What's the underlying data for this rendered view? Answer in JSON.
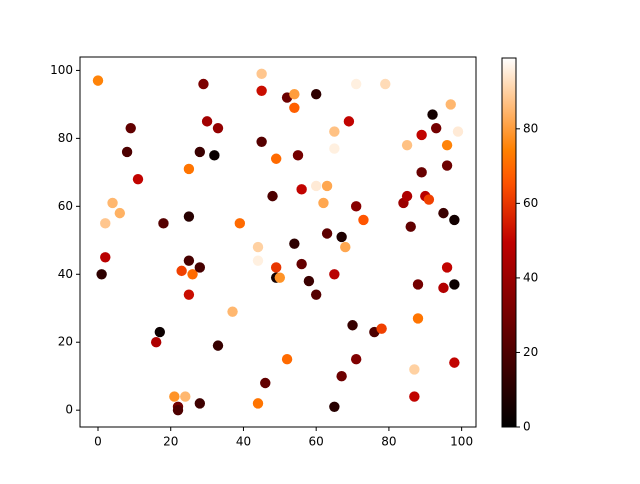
{
  "chart_data": {
    "type": "scatter",
    "x": [
      0,
      1,
      2,
      2,
      4,
      6,
      8,
      9,
      11,
      16,
      17,
      18,
      21,
      22,
      22,
      23,
      24,
      25,
      25,
      25,
      25,
      26,
      28,
      28,
      28,
      29,
      30,
      32,
      33,
      33,
      37,
      39,
      44,
      44,
      44,
      45,
      45,
      45,
      46,
      48,
      49,
      49,
      49,
      50,
      52,
      52,
      54,
      54,
      54,
      55,
      56,
      56,
      58,
      60,
      60,
      60,
      62,
      63,
      63,
      65,
      65,
      65,
      65,
      67,
      67,
      68,
      69,
      70,
      71,
      71,
      71,
      73,
      76,
      78,
      79,
      84,
      85,
      85,
      86,
      87,
      87,
      88,
      88,
      89,
      89,
      90,
      91,
      92,
      93,
      95,
      95,
      96,
      96,
      96,
      97,
      98,
      98,
      98,
      99
    ],
    "y": [
      97,
      40,
      55,
      45,
      61,
      58,
      76,
      83,
      68,
      20,
      23,
      55,
      4,
      1,
      0,
      41,
      4,
      71,
      57,
      44,
      34,
      40,
      76,
      42,
      2,
      96,
      85,
      75,
      83,
      19,
      29,
      55,
      48,
      44,
      2,
      99,
      94,
      79,
      8,
      63,
      74,
      42,
      39,
      39,
      92,
      15,
      93,
      89,
      49,
      75,
      65,
      43,
      38,
      93,
      66,
      34,
      61,
      66,
      52,
      82,
      77,
      40,
      1,
      51,
      10,
      48,
      85,
      25,
      96,
      60,
      15,
      56,
      23,
      24,
      96,
      61,
      63,
      78,
      54,
      12,
      4,
      37,
      27,
      81,
      70,
      63,
      62,
      87,
      83,
      58,
      36,
      78,
      72,
      42,
      90,
      56,
      37,
      14,
      82
    ],
    "c": [
      75,
      12,
      88,
      48,
      85,
      84,
      20,
      25,
      50,
      45,
      3,
      22,
      78,
      30,
      20,
      62,
      85,
      72,
      10,
      18,
      52,
      70,
      15,
      18,
      16,
      32,
      42,
      2,
      38,
      14,
      85,
      70,
      90,
      96,
      72,
      88,
      52,
      22,
      25,
      20,
      70,
      60,
      5,
      78,
      28,
      70,
      80,
      68,
      12,
      30,
      50,
      26,
      15,
      12,
      95,
      22,
      82,
      82,
      24,
      87,
      96,
      48,
      10,
      8,
      28,
      82,
      50,
      14,
      96,
      35,
      33,
      66,
      20,
      62,
      92,
      40,
      45,
      87,
      25,
      90,
      50,
      30,
      72,
      50,
      27,
      48,
      62,
      5,
      30,
      15,
      46,
      75,
      28,
      50,
      85,
      5,
      3,
      50,
      95
    ],
    "colormap": "gist_heat",
    "xlim": [
      -4.95,
      103.95
    ],
    "ylim": [
      -4.95,
      103.95
    ],
    "xticks": [
      0,
      20,
      40,
      60,
      80,
      100
    ],
    "yticks": [
      0,
      20,
      40,
      60,
      80,
      100
    ],
    "clim": [
      0,
      99
    ],
    "cticks": [
      0,
      20,
      40,
      60,
      80
    ]
  }
}
